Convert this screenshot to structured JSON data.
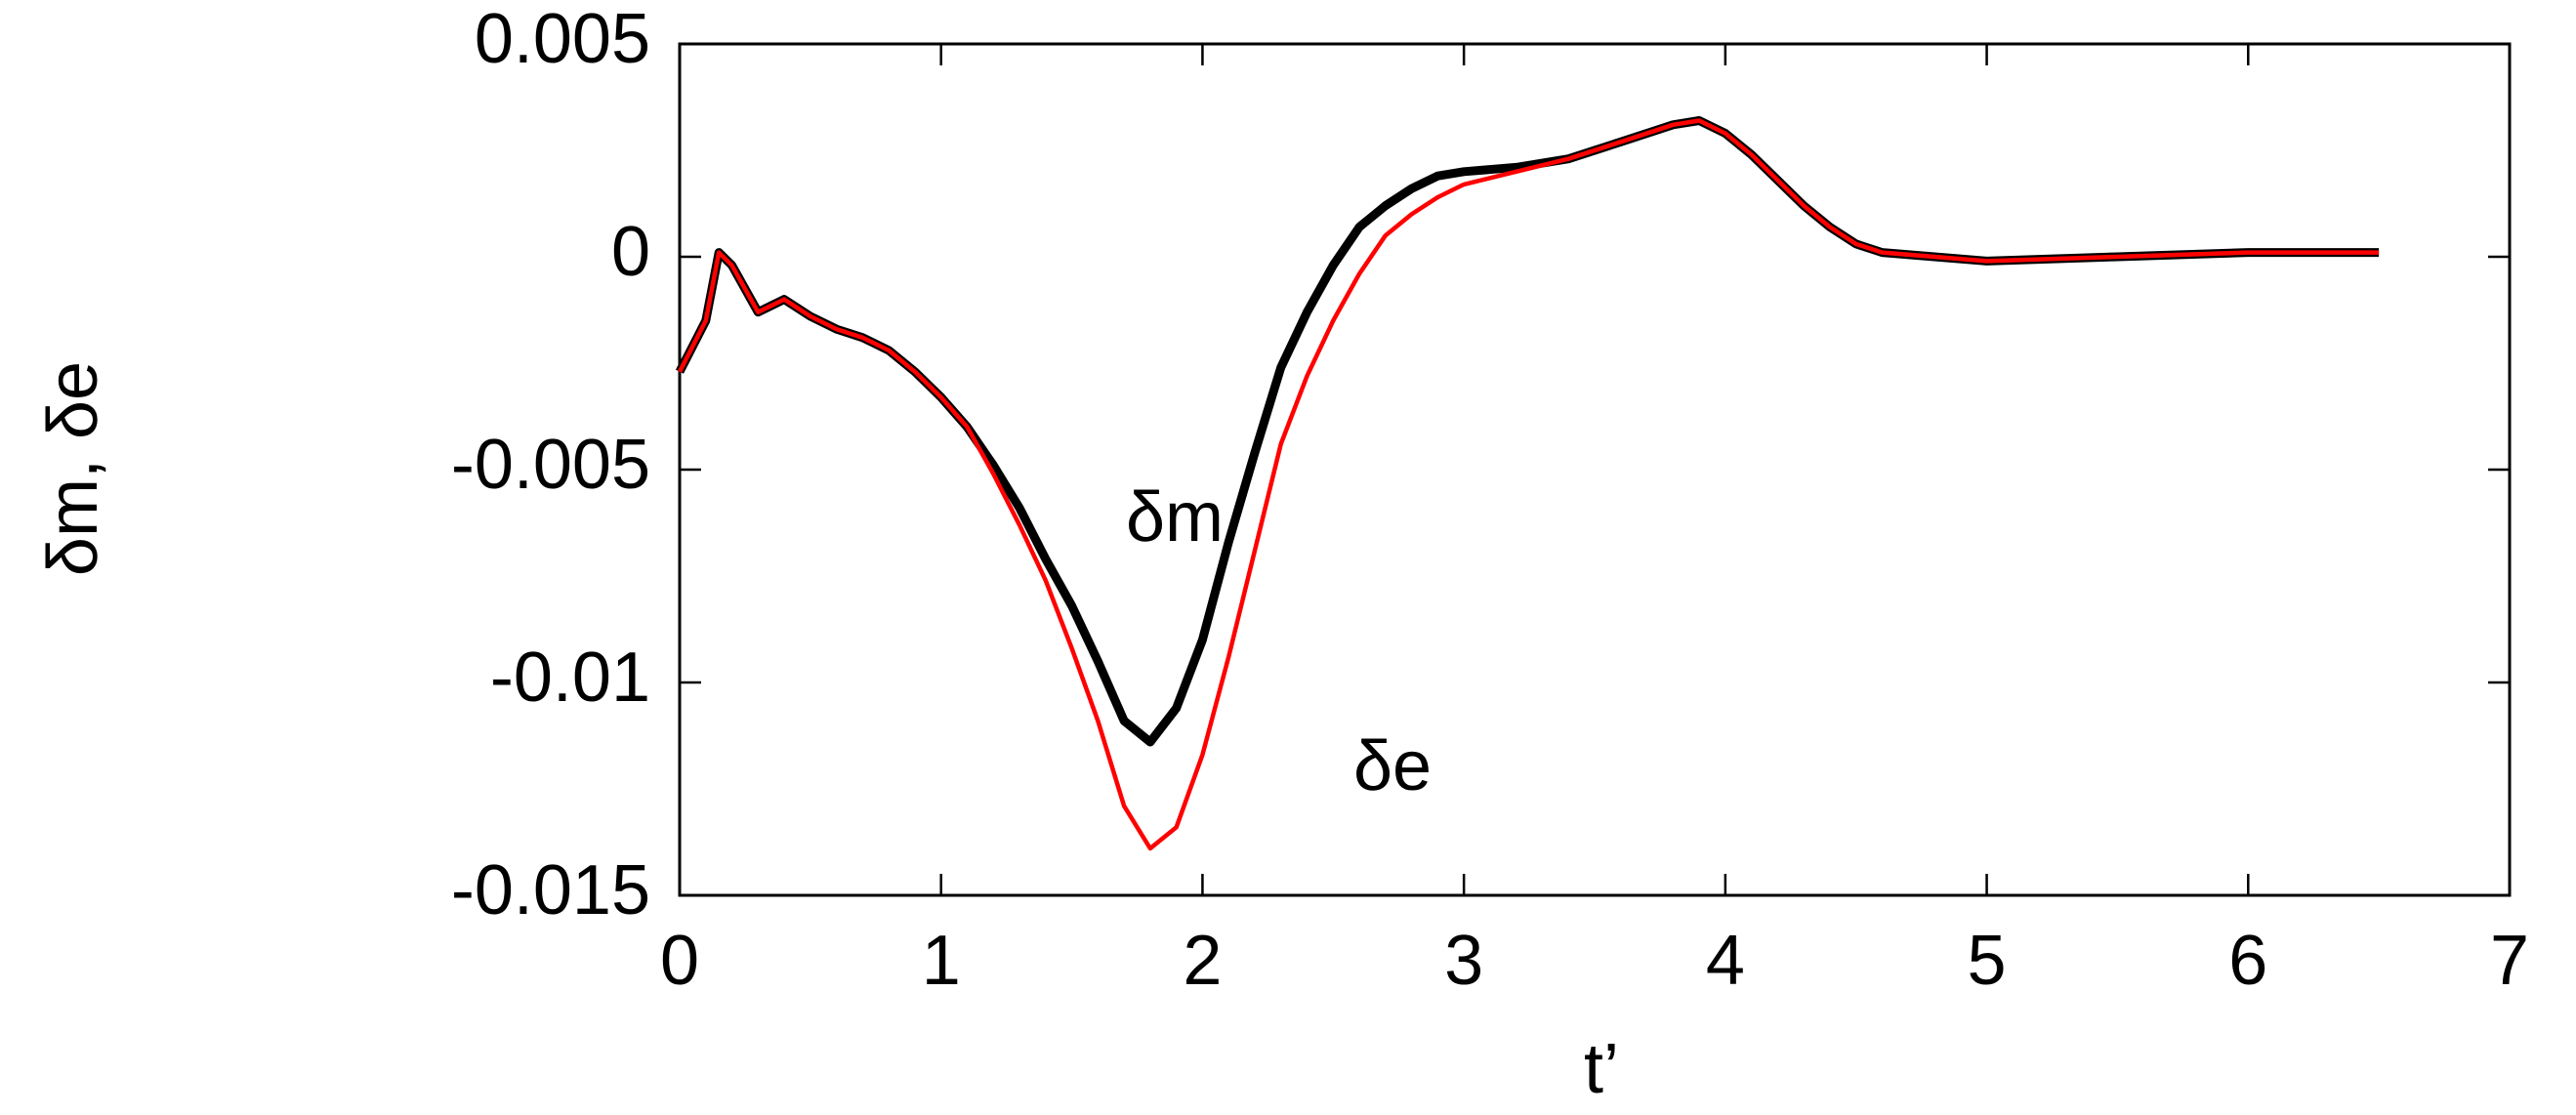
{
  "chart_data": {
    "type": "line",
    "x_label": "t’",
    "y_label": "δm, δe",
    "x": [
      0,
      0.1,
      0.15,
      0.2,
      0.3,
      0.4,
      0.5,
      0.6,
      0.7,
      0.8,
      0.9,
      1.0,
      1.1,
      1.2,
      1.3,
      1.4,
      1.5,
      1.6,
      1.7,
      1.8,
      1.9,
      2.0,
      2.1,
      2.2,
      2.3,
      2.4,
      2.5,
      2.6,
      2.7,
      2.8,
      2.9,
      3.0,
      3.2,
      3.4,
      3.6,
      3.8,
      3.9,
      4.0,
      4.1,
      4.2,
      4.3,
      4.4,
      4.5,
      4.6,
      4.8,
      5.0,
      5.5,
      6.0,
      6.5
    ],
    "series": [
      {
        "name": "δm",
        "color": "#000000",
        "values": [
          -0.0027,
          -0.0015,
          0.0001,
          -0.0002,
          -0.0013,
          -0.001,
          -0.0014,
          -0.0017,
          -0.0019,
          -0.0022,
          -0.0027,
          -0.0033,
          -0.004,
          -0.0049,
          -0.0059,
          -0.0071,
          -0.0082,
          -0.0095,
          -0.0109,
          -0.0114,
          -0.0106,
          -0.009,
          -0.0067,
          -0.0046,
          -0.0026,
          -0.0013,
          -0.0002,
          0.0007,
          0.0012,
          0.0016,
          0.0019,
          0.002,
          0.0021,
          0.0023,
          0.0027,
          0.0031,
          0.0032,
          0.0029,
          0.0024,
          0.0018,
          0.0012,
          0.0007,
          0.0003,
          0.0001,
          0,
          -0.0001,
          0,
          0.0001,
          0.0001
        ]
      },
      {
        "name": "δe",
        "color": "#ff0000",
        "values": [
          -0.0027,
          -0.0015,
          0.0001,
          -0.0002,
          -0.0013,
          -0.001,
          -0.0014,
          -0.0017,
          -0.0019,
          -0.0022,
          -0.0027,
          -0.0033,
          -0.004,
          -0.0051,
          -0.0063,
          -0.0076,
          -0.0092,
          -0.0109,
          -0.0129,
          -0.0139,
          -0.0134,
          -0.0117,
          -0.0094,
          -0.0069,
          -0.0044,
          -0.0028,
          -0.0015,
          -0.0004,
          0.0005,
          0.001,
          0.0014,
          0.0017,
          0.002,
          0.0023,
          0.0027,
          0.0031,
          0.0032,
          0.0029,
          0.0024,
          0.0018,
          0.0012,
          0.0007,
          0.0003,
          0.0001,
          0,
          -0.0001,
          0,
          0.0001,
          0.0001
        ]
      }
    ],
    "xlim": [
      0,
      7
    ],
    "xticks": [
      0,
      1,
      2,
      3,
      4,
      5,
      6,
      7
    ],
    "ylim": [
      -0.015,
      0.005
    ],
    "yticks": [
      -0.015,
      -0.01,
      -0.005,
      0,
      0.005
    ],
    "grid": false
  }
}
